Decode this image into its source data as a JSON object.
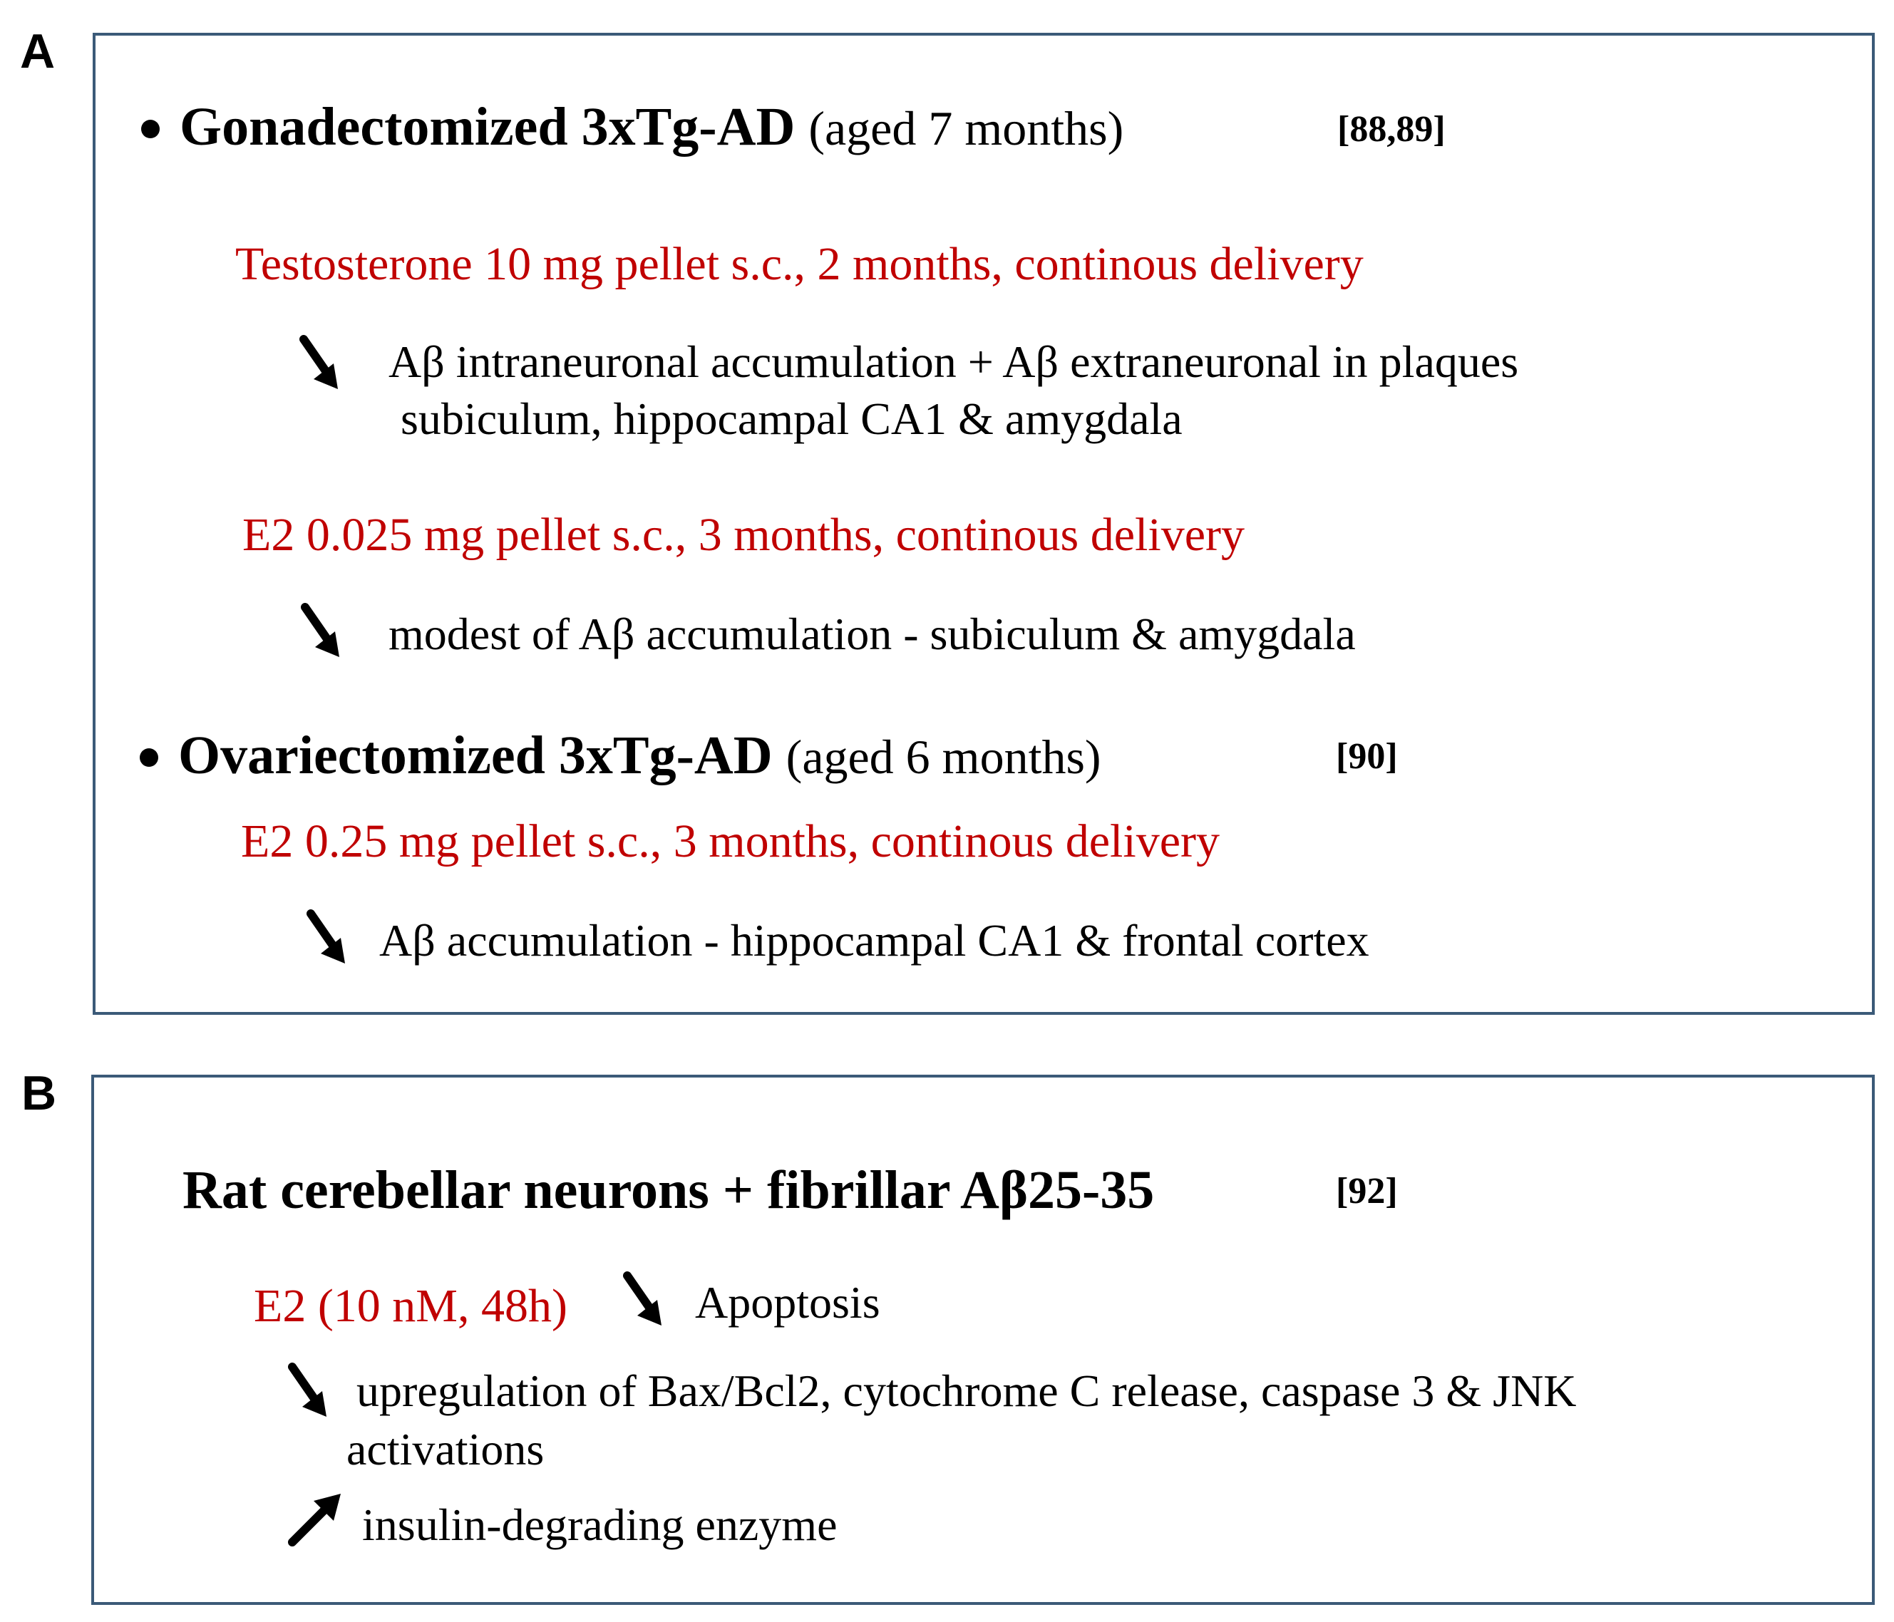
{
  "panels": [
    {
      "letter": "A",
      "groups": [
        {
          "title": "Gonadectomized 3xTg-AD",
          "subtitle": "(aged 7 months)",
          "ref": "[88,89]",
          "treatments": [
            {
              "dose": "Testosterone  10 mg pellet s.c., 2 months, continous delivery",
              "effects": [
                {
                  "arrow": "down-arrow-icon",
                  "line1": "Aβ intraneuronal accumulation  + Aβ extraneuronal in plaques",
                  "line2": "subiculum, hippocampal CA1 & amygdala"
                }
              ]
            },
            {
              "dose": "E2 0.025 mg pellet s.c., 3 months, continous delivery",
              "effects": [
                {
                  "arrow": "down-arrow-icon",
                  "line1": "modest of Aβ accumulation - subiculum & amygdala"
                }
              ]
            }
          ]
        },
        {
          "title": "Ovariectomized 3xTg-AD",
          "subtitle": "(aged 6  months)",
          "ref": "[90]",
          "treatments": [
            {
              "dose": "E2  0.25 mg pellet s.c., 3 months, continous delivery",
              "effects": [
                {
                  "arrow": "down-arrow-icon",
                  "line1": "Aβ accumulation -  hippocampal CA1 & frontal cortex"
                }
              ]
            }
          ]
        }
      ]
    },
    {
      "letter": "B",
      "title": "Rat cerebellar neurons + fibrillar  Aβ25-35",
      "ref": "[92]",
      "dose": "E2 (10 nM, 48h)",
      "effects": [
        {
          "arrow": "down-arrow-icon",
          "line1": "Apoptosis"
        },
        {
          "arrow": "down-arrow-icon",
          "line1": "upregulation of Bax/Bcl2, cytochrome C release, caspase 3  & JNK",
          "line2": "activations"
        },
        {
          "arrow": "up-arrow-icon",
          "line1": "insulin-degrading enzyme"
        }
      ]
    }
  ],
  "colors": {
    "treatment": "#c00000",
    "border": "#3b5a78",
    "text": "#000000"
  }
}
